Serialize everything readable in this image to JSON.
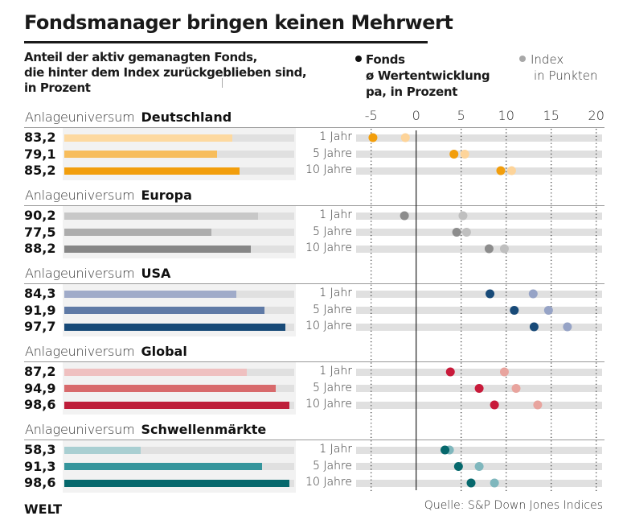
{
  "title": "Fondsmanager bringen keinen Mehrwert",
  "left_subtitle": [
    "Anteil der aktiv gemanagten Fonds,",
    "die hinter dem Index zurückgeblieben sind,",
    "in Prozent"
  ],
  "legend": {
    "fonds": {
      "label": "Fonds",
      "sub1": "ø Wertentwicklung",
      "sub2": "pa, in Prozent"
    },
    "index": {
      "label": "Index",
      "sub1": "in Punkten"
    }
  },
  "source": "Quelle: S&P Down Jones Indices",
  "logo": "WELT",
  "section_prefix": "Anlageuniversum",
  "chart_data": [
    {
      "type": "bar",
      "title": "Anteil der aktiv gemanagten Fonds, die hinter dem Index zurückgeblieben sind, in Prozent",
      "orientation": "horizontal",
      "groups": [
        "Deutschland",
        "Europa",
        "USA",
        "Global",
        "Schwellenmärkte"
      ],
      "categories": [
        "1 Jahr",
        "5 Jahre",
        "10 Jahre"
      ],
      "series": [
        {
          "name": "Deutschland",
          "values": [
            83.2,
            79.1,
            85.2
          ],
          "labels": [
            "83,2",
            "79,1",
            "85,2"
          ],
          "colors": [
            "#fdd9a0",
            "#f7bd5c",
            "#f29e0c"
          ]
        },
        {
          "name": "Europa",
          "values": [
            90.2,
            77.5,
            88.2
          ],
          "labels": [
            "90,2",
            "77,5",
            "88,2"
          ],
          "colors": [
            "#c8c8c8",
            "#adadad",
            "#878787"
          ]
        },
        {
          "name": "USA",
          "values": [
            84.3,
            91.9,
            97.7
          ],
          "labels": [
            "84,3",
            "91,9",
            "97,7"
          ],
          "colors": [
            "#a0abc9",
            "#5f7aa6",
            "#184a78"
          ]
        },
        {
          "name": "Global",
          "values": [
            87.2,
            94.9,
            98.6
          ],
          "labels": [
            "87,2",
            "94,9",
            "98,6"
          ],
          "colors": [
            "#efc0c0",
            "#d86a6c",
            "#be1e3a"
          ]
        },
        {
          "name": "Schwellenmärkte",
          "values": [
            58.3,
            91.3,
            98.6
          ],
          "labels": [
            "58,3",
            "91,3",
            "98,6"
          ],
          "colors": [
            "#a9cfd2",
            "#35959c",
            "#06686c"
          ]
        }
      ],
      "xlim": [
        37.5,
        100
      ]
    },
    {
      "type": "scatter",
      "title": "ø Wertentwicklung pa, in Prozent (Fonds) vs. Index",
      "x_ticks": [
        -5,
        0,
        5,
        10,
        15,
        20
      ],
      "tick_labels": [
        "-5",
        "0",
        "5",
        "10",
        "15",
        "20"
      ],
      "xlim": [
        -6.6,
        20.7
      ],
      "grid": "dotted vertical",
      "zero_line": true,
      "legend": [
        "Fonds",
        "Index"
      ],
      "legend_position": "top",
      "categories": [
        "1 Jahr",
        "5 Jahre",
        "10 Jahre"
      ],
      "series": [
        {
          "name": "Deutschland",
          "fonds": [
            -4.8,
            4.2,
            9.4
          ],
          "index": [
            -1.2,
            5.4,
            10.6
          ],
          "fonds_color": "#f29e0c",
          "index_color": "#fdd49a"
        },
        {
          "name": "Europa",
          "fonds": [
            -1.3,
            4.5,
            8.1
          ],
          "index": [
            5.2,
            5.6,
            9.8
          ],
          "fonds_color": "#8c8c8c",
          "index_color": "#bfbfbf"
        },
        {
          "name": "USA",
          "fonds": [
            8.2,
            10.9,
            13.1
          ],
          "index": [
            13.0,
            14.7,
            16.8
          ],
          "fonds_color": "#184a78",
          "index_color": "#96a3c6"
        },
        {
          "name": "Global",
          "fonds": [
            3.8,
            7.0,
            8.7
          ],
          "index": [
            9.8,
            11.1,
            13.5
          ],
          "fonds_color": "#c81a3a",
          "index_color": "#e8a49e"
        },
        {
          "name": "Schwellenmärkte",
          "fonds": [
            3.2,
            4.7,
            6.1
          ],
          "index": [
            3.7,
            7.0,
            8.7
          ],
          "fonds_color": "#06686c",
          "index_color": "#7fb7bd"
        }
      ]
    }
  ]
}
